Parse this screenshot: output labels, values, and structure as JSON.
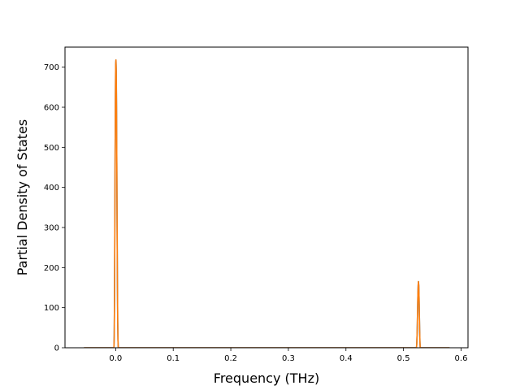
{
  "chart_data": {
    "type": "line",
    "title": "",
    "xlabel": "Frequency (THz)",
    "ylabel": "Partial Density of States",
    "xlim": [
      -0.088,
      0.612
    ],
    "ylim": [
      0,
      750
    ],
    "x_ticks": [
      0.0,
      0.1,
      0.2,
      0.3,
      0.4,
      0.5,
      0.6
    ],
    "x_tick_labels": [
      "0.0",
      "0.1",
      "0.2",
      "0.3",
      "0.4",
      "0.5",
      "0.6"
    ],
    "y_ticks": [
      0,
      100,
      200,
      300,
      400,
      500,
      600,
      700
    ],
    "y_tick_labels": [
      "0",
      "100",
      "200",
      "300",
      "400",
      "500",
      "600",
      "700"
    ],
    "grid": false,
    "legend": "none",
    "series": [
      {
        "color": "#1f77b4",
        "x": [
          -0.055,
          -0.003,
          -0.0025,
          -0.002,
          -0.0015,
          -0.001,
          -0.0005,
          0.0,
          0.0005,
          0.001,
          0.0015,
          0.002,
          0.0025,
          0.003,
          0.0035,
          0.004,
          0.0045,
          0.005,
          0.0055,
          0.006,
          0.0065,
          0.007,
          0.008,
          0.52,
          0.521,
          0.522,
          0.5225,
          0.523,
          0.5235,
          0.524,
          0.5245,
          0.525,
          0.5255,
          0.526,
          0.5265,
          0.527,
          0.5275,
          0.528,
          0.5285,
          0.529,
          0.5295,
          0.53,
          0.531,
          0.58
        ],
        "y": [
          0,
          0,
          30,
          120,
          280,
          460,
          620,
          705,
          718,
          690,
          600,
          460,
          310,
          170,
          70,
          20,
          0,
          0,
          0,
          0,
          0,
          0,
          0,
          0,
          0,
          0,
          0,
          10,
          30,
          60,
          100,
          135,
          157,
          165,
          155,
          125,
          85,
          45,
          15,
          0,
          0,
          0,
          0,
          0
        ]
      },
      {
        "color": "#ff7f0e",
        "x": [
          -0.055,
          -0.003,
          -0.0025,
          -0.002,
          -0.0015,
          -0.001,
          -0.0005,
          0.0,
          0.0005,
          0.001,
          0.0015,
          0.002,
          0.0025,
          0.003,
          0.0035,
          0.004,
          0.0045,
          0.005,
          0.0055,
          0.006,
          0.0065,
          0.007,
          0.008,
          0.52,
          0.521,
          0.522,
          0.5225,
          0.523,
          0.5235,
          0.524,
          0.5245,
          0.525,
          0.5255,
          0.526,
          0.5265,
          0.527,
          0.5275,
          0.528,
          0.5285,
          0.529,
          0.5295,
          0.53,
          0.531,
          0.58
        ],
        "y": [
          0,
          0,
          30,
          120,
          280,
          460,
          620,
          705,
          718,
          690,
          600,
          460,
          310,
          170,
          70,
          20,
          0,
          0,
          0,
          0,
          0,
          0,
          0,
          0,
          0,
          0,
          0,
          10,
          30,
          60,
          100,
          135,
          157,
          165,
          155,
          125,
          85,
          45,
          15,
          0,
          0,
          0,
          0,
          0
        ]
      }
    ]
  }
}
